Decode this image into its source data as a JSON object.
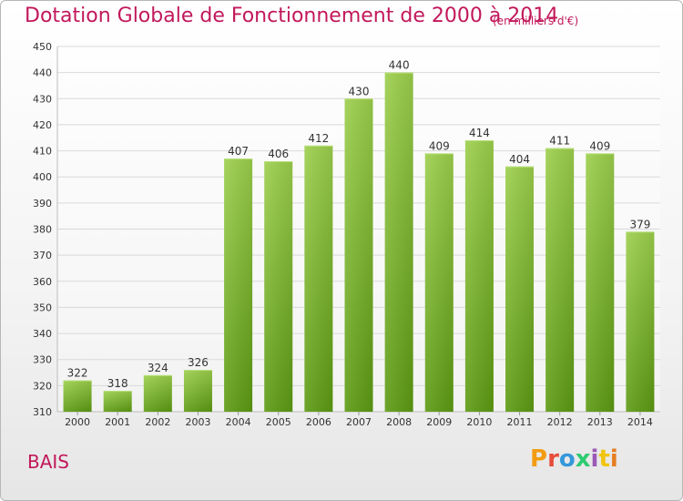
{
  "header": {
    "title": "Dotation Globale de Fonctionnement de 2000 à 2014",
    "subtitle": "(en milliers d'€)"
  },
  "footer": {
    "commune": "BAIS",
    "logo_text": "Proxiti"
  },
  "colors": {
    "title": "#c2185b",
    "bar_top": "#9ccf4c",
    "bar_bottom": "#5c9a12",
    "grid": "#d9d9d9",
    "axis_text": "#333333"
  },
  "chart_data": {
    "type": "bar",
    "title": "Dotation Globale de Fonctionnement de 2000 à 2014",
    "xlabel": "",
    "ylabel": "",
    "categories": [
      "2000",
      "2001",
      "2002",
      "2003",
      "2004",
      "2005",
      "2006",
      "2007",
      "2008",
      "2009",
      "2010",
      "2011",
      "2012",
      "2013",
      "2014"
    ],
    "values": [
      322,
      318,
      324,
      326,
      407,
      406,
      412,
      430,
      440,
      409,
      414,
      404,
      411,
      409,
      379
    ],
    "ylim": [
      310,
      450
    ],
    "yticks": [
      310,
      320,
      330,
      340,
      350,
      360,
      370,
      380,
      390,
      400,
      410,
      420,
      430,
      440,
      450
    ],
    "grid": true,
    "legend": "none"
  }
}
